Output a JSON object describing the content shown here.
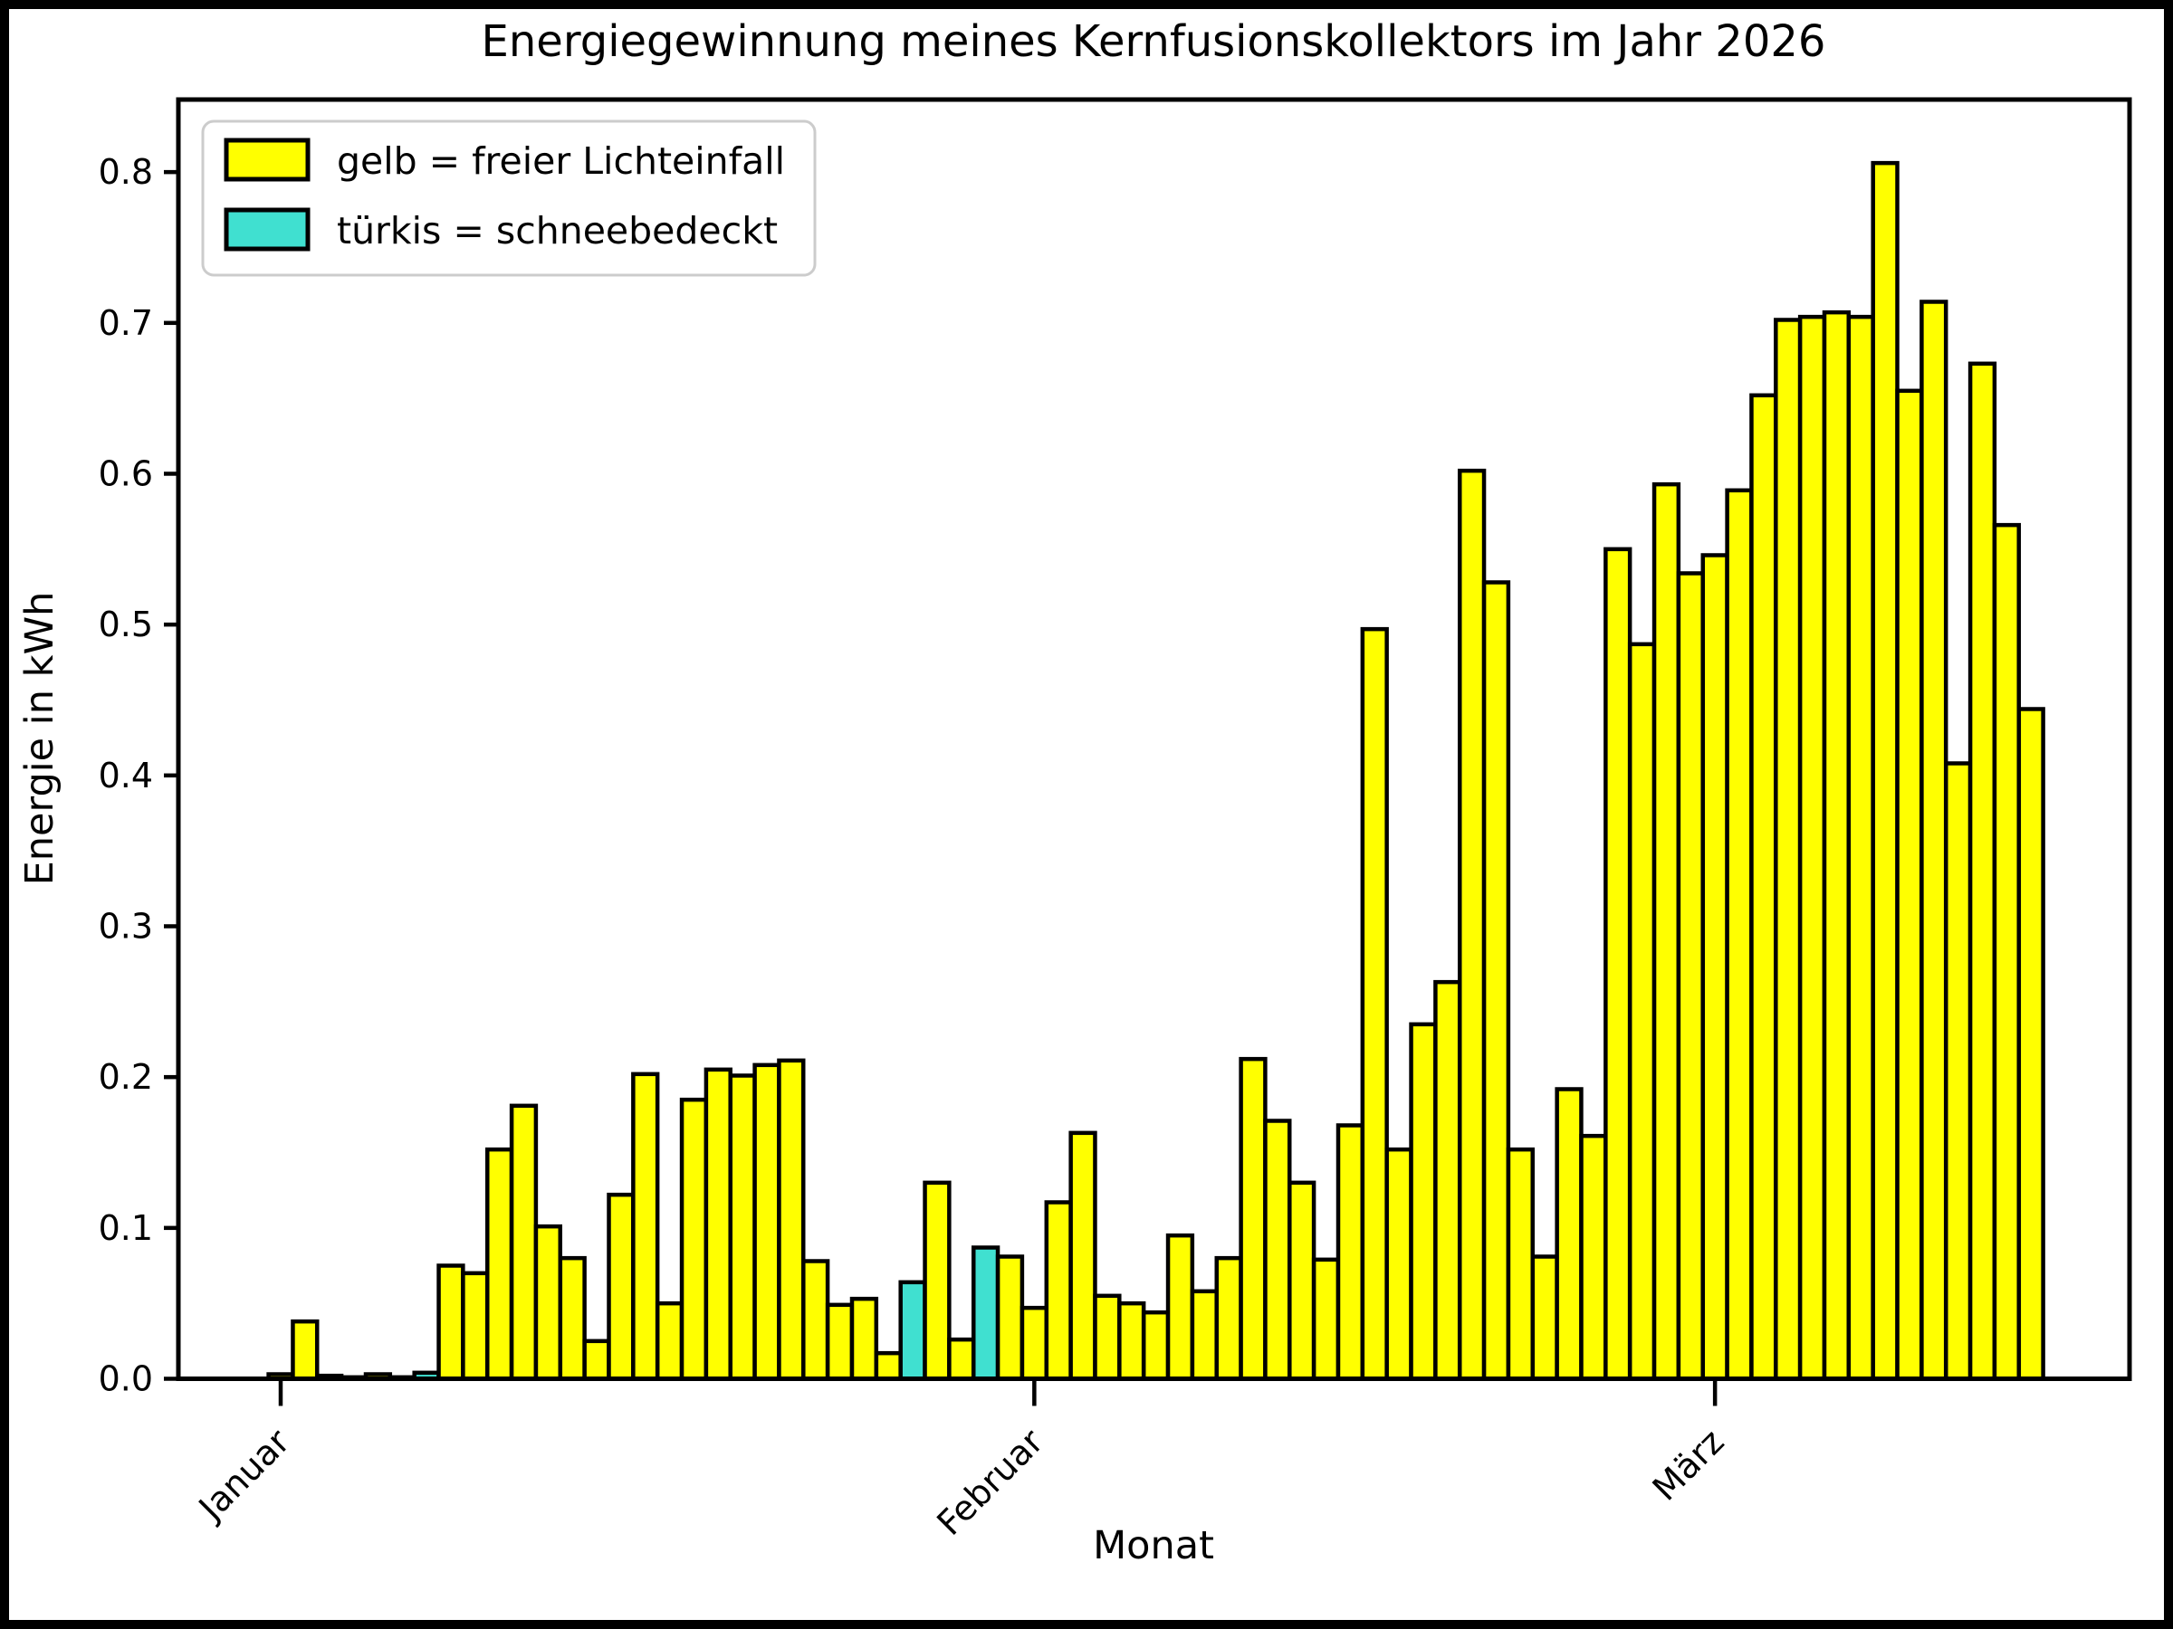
{
  "title": "Energiegewinnung meines Kernfusionskollektors im Jahr 2026",
  "xlabel": "Monat",
  "ylabel": "Energie in kWh",
  "legend": {
    "entries": [
      {
        "label": "gelb = freier Lichteinfall",
        "color": "#ffff00"
      },
      {
        "label": "türkis = schneebedeckt",
        "color": "#40e0d0"
      }
    ]
  },
  "colors": {
    "bar_yellow": "#ffff00",
    "bar_turquoise": "#40e0d0",
    "bar_edge": "#000000",
    "background": "#ffffff",
    "frame": "#000000",
    "legend_border": "#cccccc"
  },
  "chart_data": {
    "type": "bar",
    "title": "Energiegewinnung meines Kernfusionskollektors im Jahr 2026",
    "xlabel": "Monat",
    "ylabel": "Energie in kWh",
    "ylim": [
      0.0,
      0.848
    ],
    "ytick_labels": [
      "0.0",
      "0.1",
      "0.2",
      "0.3",
      "0.4",
      "0.5",
      "0.6",
      "0.7",
      "0.8"
    ],
    "xtick_labels": [
      "Januar",
      "Februar",
      "März"
    ],
    "grid": false,
    "legend_position": "upper-left",
    "unit": "kWh",
    "series": [
      {
        "month": "Januar",
        "values": [
          0.003,
          0.038,
          0.002,
          0.001,
          0.003,
          0.001,
          0.004,
          0.075,
          0.07,
          0.152,
          0.181,
          0.101,
          0.08,
          0.025,
          0.122,
          0.202,
          0.05,
          0.185,
          0.205,
          0.201,
          0.208,
          0.211,
          0.078,
          0.049,
          0.053,
          0.017,
          0.064,
          0.13,
          0.026,
          0.087,
          0.081
        ],
        "snow_days": [
          7,
          27,
          30
        ]
      },
      {
        "month": "Februar",
        "values": [
          0.047,
          0.117,
          0.163,
          0.055,
          0.05,
          0.044,
          0.095,
          0.058,
          0.08,
          0.212,
          0.171,
          0.13,
          0.079,
          0.168,
          0.497,
          0.152,
          0.235,
          0.263,
          0.602,
          0.528,
          0.152,
          0.081,
          0.192,
          0.161,
          0.55,
          0.487,
          0.593,
          0.534
        ],
        "snow_days": []
      },
      {
        "month": "März",
        "values": [
          0.546,
          0.589,
          0.652,
          0.702,
          0.704,
          0.707,
          0.704,
          0.806,
          0.655,
          0.714,
          0.408,
          0.673,
          0.566,
          0.444
        ],
        "snow_days": []
      }
    ]
  }
}
